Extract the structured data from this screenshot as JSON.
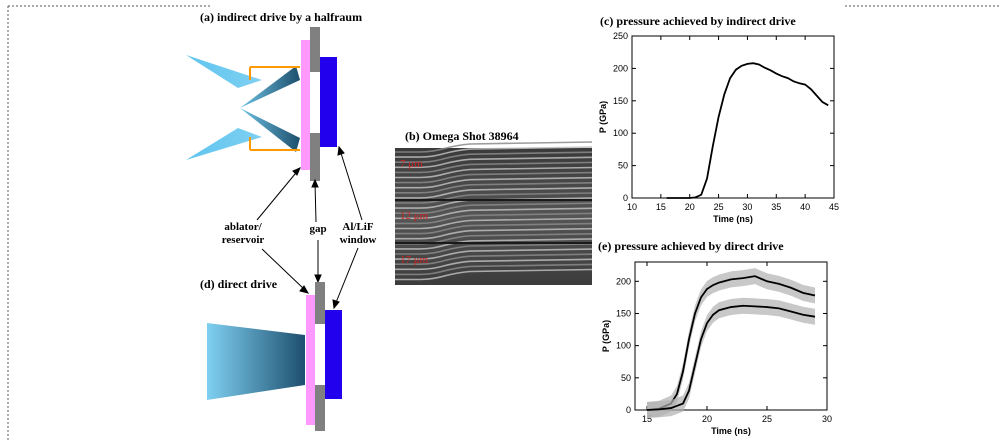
{
  "panels": {
    "a": {
      "title": "(a) indirect drive by a halfraum"
    },
    "b": {
      "title": "(b)  Omega Shot 38964",
      "labels": [
        "7 μm",
        "12 μm",
        "17 μm"
      ]
    },
    "c": {
      "title": "(c) pressure achieved by indirect drive"
    },
    "d": {
      "title": "(d) direct drive"
    },
    "e": {
      "title": "(e) pressure achieved by direct drive"
    }
  },
  "labels": {
    "ablator_line1": "ablator/",
    "ablator_line2": "reservoir",
    "gap": "gap",
    "window_line1": "Al/LiF",
    "window_line2": "window"
  },
  "colors": {
    "beam": "#5bb8e6",
    "ablator": "#ff99ff",
    "window": "#2200ee",
    "gap_bar": "#808080",
    "halfraum": "#ff9900",
    "image_label": "#cc2222"
  },
  "chart_data": [
    {
      "id": "c",
      "type": "line",
      "title": "(c) pressure achieved by indirect drive",
      "xlabel": "Time (ns)",
      "ylabel": "P (GPa)",
      "xlim": [
        10,
        45
      ],
      "ylim": [
        0,
        250
      ],
      "xticks": [
        10,
        15,
        20,
        25,
        30,
        35,
        40,
        45
      ],
      "yticks": [
        0,
        50,
        100,
        150,
        200,
        250
      ],
      "series": [
        {
          "x": [
            16,
            18,
            20,
            21,
            22,
            23,
            24,
            25,
            26,
            27,
            28,
            29,
            30,
            31,
            32,
            33,
            34,
            35,
            36,
            37,
            38,
            39,
            40,
            41,
            42,
            43,
            44
          ],
          "values": [
            0,
            0,
            0,
            1,
            5,
            30,
            80,
            125,
            160,
            185,
            198,
            204,
            207,
            208,
            206,
            201,
            197,
            192,
            188,
            185,
            180,
            177,
            175,
            168,
            158,
            148,
            143
          ]
        }
      ]
    },
    {
      "id": "e",
      "type": "line",
      "title": "(e) pressure achieved by direct drive",
      "xlabel": "Time (ns)",
      "ylabel": "P (GPa)",
      "xlim": [
        14,
        30
      ],
      "ylim": [
        0,
        230
      ],
      "xticks": [
        15,
        20,
        25,
        30
      ],
      "yticks": [
        0,
        50,
        100,
        150,
        200
      ],
      "series": [
        {
          "x": [
            15,
            16,
            17,
            17.5,
            18,
            18.5,
            19,
            19.5,
            20,
            20.5,
            21,
            22,
            23,
            24,
            25,
            26,
            27,
            28,
            29
          ],
          "values": [
            0,
            2,
            10,
            25,
            60,
            110,
            150,
            175,
            188,
            194,
            198,
            203,
            205,
            208,
            200,
            196,
            190,
            182,
            178
          ]
        },
        {
          "x": [
            15,
            16,
            17,
            18,
            18.5,
            19,
            19.5,
            20,
            20.5,
            21,
            22,
            23,
            24,
            25,
            26,
            27,
            28,
            29
          ],
          "values": [
            0,
            1,
            3,
            10,
            30,
            70,
            110,
            135,
            148,
            155,
            160,
            162,
            161,
            160,
            158,
            153,
            148,
            145
          ]
        }
      ]
    }
  ]
}
